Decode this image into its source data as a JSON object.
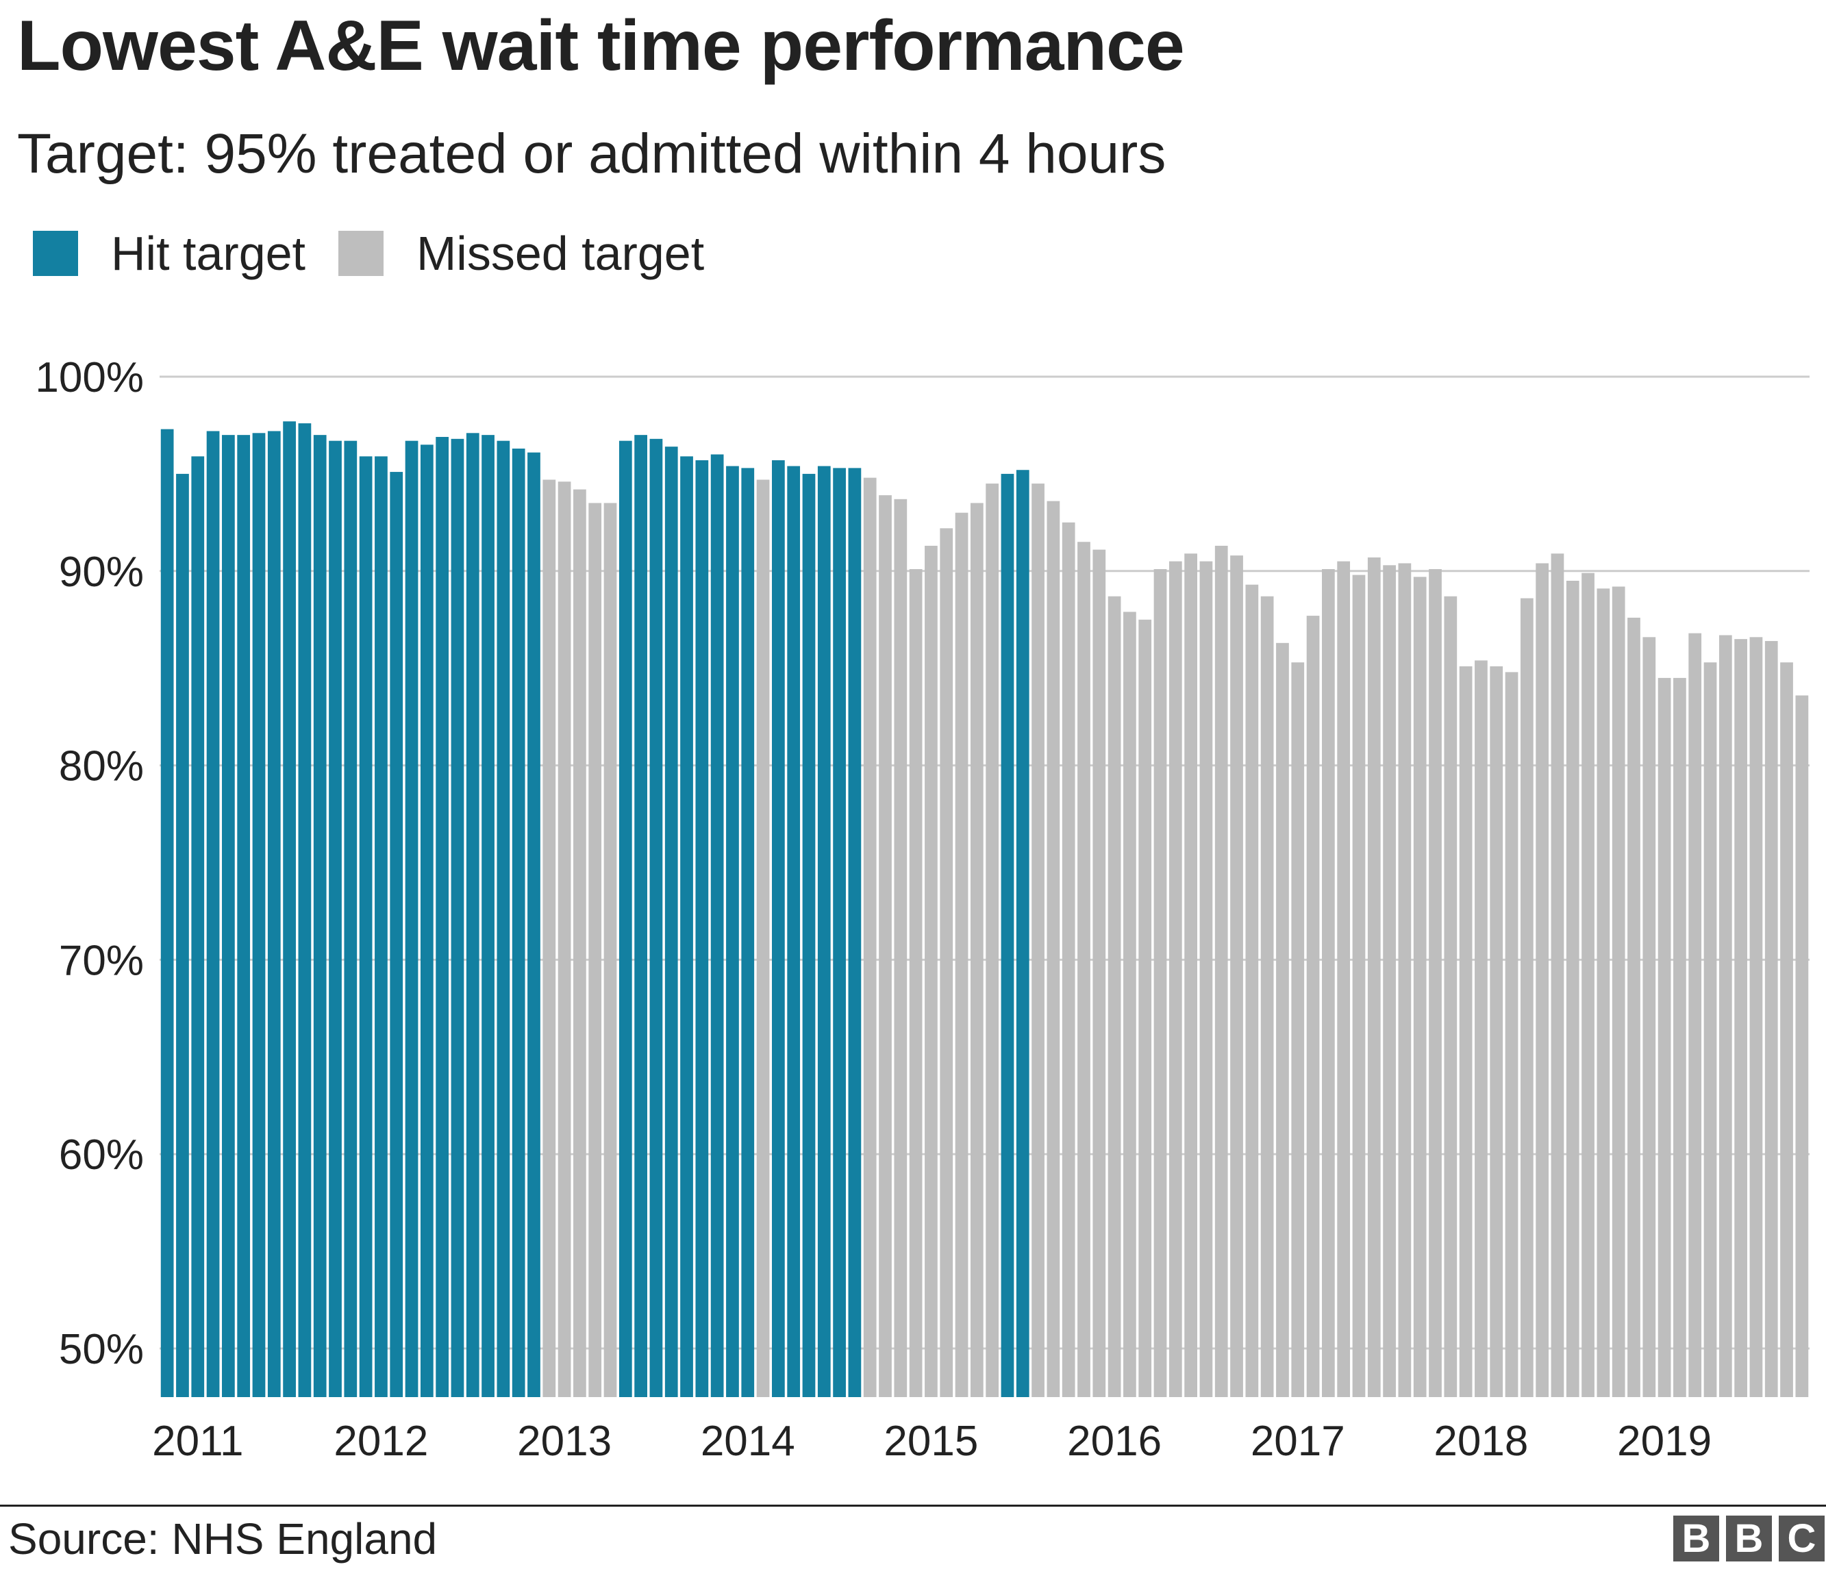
{
  "title": "Lowest A&E wait time performance",
  "subtitle": "Target: 95% treated or admitted within 4 hours",
  "legend": [
    {
      "label": "Hit target",
      "color": "#1380a1"
    },
    {
      "label": "Missed target",
      "color": "#bebebe"
    }
  ],
  "source": "Source: NHS England",
  "logo": [
    "B",
    "B",
    "C"
  ],
  "chart_data": {
    "type": "bar",
    "title": "Lowest A&E wait time performance",
    "subtitle": "Target: 95% treated or admitted within 4 hours",
    "xlabel": "",
    "ylabel": "",
    "ylim": [
      47.5,
      100
    ],
    "yticks": [
      50,
      60,
      70,
      80,
      90,
      100
    ],
    "ytick_labels": [
      "50%",
      "60%",
      "70%",
      "80%",
      "90%",
      "100%"
    ],
    "xtick_labels": [
      "2011",
      "2012",
      "2013",
      "2014",
      "2015",
      "2016",
      "2017",
      "2018",
      "2019"
    ],
    "xtick_positions": [
      2.5,
      14.5,
      26.5,
      38.5,
      50.5,
      62.5,
      74.5,
      86.5,
      98.5
    ],
    "target": 95,
    "grid": true,
    "legend_position": "top-left",
    "colors": {
      "hit": "#1380a1",
      "missed": "#bebebe",
      "grid": "#cccccc"
    },
    "values": [
      97.3,
      95.0,
      95.9,
      97.2,
      97.0,
      97.0,
      97.1,
      97.2,
      97.7,
      97.6,
      97.0,
      96.7,
      96.7,
      95.9,
      95.9,
      95.1,
      96.7,
      96.5,
      96.9,
      96.8,
      97.1,
      97.0,
      96.7,
      96.3,
      96.1,
      94.7,
      94.6,
      94.2,
      93.5,
      93.5,
      96.7,
      97.0,
      96.8,
      96.4,
      95.9,
      95.7,
      96.0,
      95.4,
      95.3,
      94.7,
      95.7,
      95.4,
      95.0,
      95.4,
      95.3,
      95.3,
      94.8,
      93.9,
      93.7,
      90.1,
      91.3,
      92.2,
      93.0,
      93.5,
      94.5,
      95.0,
      95.2,
      94.5,
      93.6,
      92.5,
      91.5,
      91.1,
      88.7,
      87.9,
      87.5,
      90.1,
      90.5,
      90.9,
      90.5,
      91.3,
      90.8,
      89.3,
      88.7,
      86.3,
      85.3,
      87.7,
      90.1,
      90.5,
      89.8,
      90.7,
      90.3,
      90.4,
      89.7,
      90.1,
      88.7,
      85.1,
      85.4,
      85.1,
      84.8,
      88.6,
      90.4,
      90.9,
      89.5,
      89.9,
      89.1,
      89.2,
      87.6,
      86.6,
      84.5,
      84.5,
      86.8,
      85.3,
      86.7,
      86.5,
      86.6,
      86.4,
      85.3,
      83.6
    ]
  }
}
